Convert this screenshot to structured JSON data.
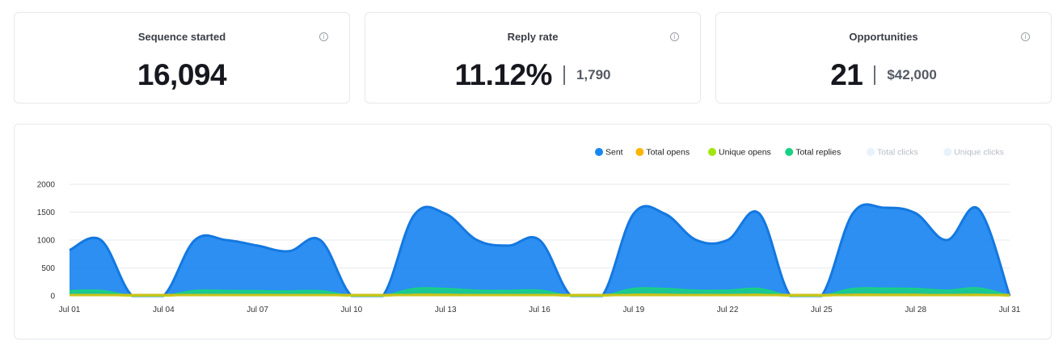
{
  "cards": [
    {
      "title": "Sequence started",
      "value": "16,094",
      "secondary": ""
    },
    {
      "title": "Reply rate",
      "value": "11.12%",
      "secondary": "1,790"
    },
    {
      "title": "Opportunities",
      "value": "21",
      "secondary": "$42,000"
    }
  ],
  "info_icon": "info-icon",
  "chart_data": {
    "type": "area",
    "title": "",
    "xlabel": "",
    "ylabel": "",
    "ylim": [
      0,
      2000
    ],
    "yticks": [
      "0",
      "500",
      "1000",
      "1500",
      "2000"
    ],
    "x_tick_labels": [
      "Jul 01",
      "Jul 04",
      "Jul 07",
      "Jul 10",
      "Jul 13",
      "Jul 16",
      "Jul 19",
      "Jul 22",
      "Jul 25",
      "Jul 28",
      "Jul 31"
    ],
    "legend_placement": "top-right",
    "grid": true,
    "series": [
      {
        "name": "Sent",
        "color": "#1a86f0",
        "visible": true,
        "values": [
          820,
          1000,
          0,
          0,
          1000,
          1000,
          900,
          800,
          1000,
          0,
          0,
          1450,
          1470,
          1000,
          900,
          1000,
          0,
          0,
          1470,
          1470,
          1000,
          1000,
          1480,
          0,
          0,
          1480,
          1580,
          1480,
          1000,
          1560,
          0
        ]
      },
      {
        "name": "Total opens",
        "color": "#ffb400",
        "visible": true,
        "values": [
          20,
          20,
          0,
          0,
          20,
          20,
          20,
          20,
          20,
          0,
          0,
          25,
          25,
          20,
          20,
          20,
          0,
          0,
          25,
          25,
          20,
          20,
          25,
          0,
          0,
          25,
          25,
          25,
          20,
          25,
          0
        ]
      },
      {
        "name": "Unique opens",
        "color": "#a3e60f",
        "visible": true,
        "values": [
          15,
          15,
          0,
          0,
          15,
          15,
          15,
          15,
          15,
          0,
          0,
          18,
          18,
          15,
          15,
          15,
          0,
          0,
          18,
          18,
          15,
          15,
          18,
          0,
          0,
          18,
          18,
          18,
          15,
          18,
          0
        ]
      },
      {
        "name": "Total replies",
        "color": "#19d184",
        "visible": true,
        "values": [
          90,
          95,
          0,
          0,
          95,
          95,
          90,
          85,
          90,
          0,
          0,
          130,
          130,
          100,
          95,
          100,
          0,
          0,
          130,
          130,
          100,
          100,
          130,
          0,
          0,
          130,
          135,
          130,
          100,
          140,
          0
        ]
      },
      {
        "name": "Total clicks",
        "color": "#e9f1fb",
        "visible": false,
        "values": []
      },
      {
        "name": "Unique clicks",
        "color": "#e9f1fb",
        "visible": false,
        "values": []
      }
    ]
  }
}
